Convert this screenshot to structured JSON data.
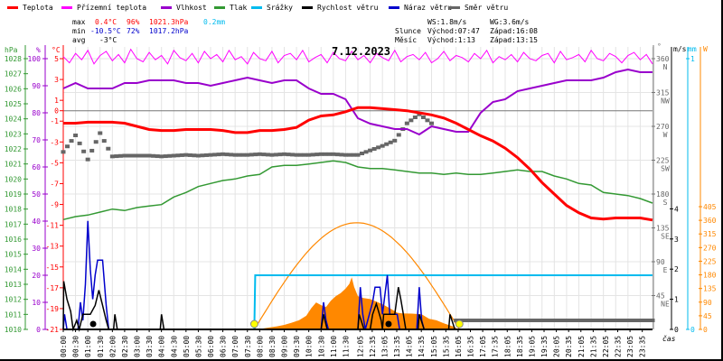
{
  "legend": [
    {
      "label": "Teplota",
      "color": "#ff0000"
    },
    {
      "label": "Přízemní teplota",
      "color": "#ff00ff"
    },
    {
      "label": "Vlhkost",
      "color": "#9900cc"
    },
    {
      "label": "Tlak",
      "color": "#339933"
    },
    {
      "label": "Srážky",
      "color": "#00bbee"
    },
    {
      "label": "Rychlost větru",
      "color": "#000000"
    },
    {
      "label": "Náraz větru",
      "color": "#0000cc"
    },
    {
      "label": "Směr větru",
      "color": "#666666"
    }
  ],
  "stats": {
    "max_label": "max",
    "max_temp": "0.4°C",
    "max_hum": "96%",
    "max_press": "1021.3hPa",
    "precip": "0.2mm",
    "min_label": "min",
    "min_temp": "-10.5°C",
    "min_hum": "72%",
    "min_press": "1017.2hPa",
    "avg_label": "avg",
    "avg_temp": "-3°C"
  },
  "wind_stats": {
    "ws": "WS:1.8m/s",
    "wg": "WG:3.6m/s"
  },
  "sun": {
    "label": "Slunce",
    "rise": "Východ:07:47",
    "set": "Západ:16:08",
    "rise_h": 7.783,
    "set_h": 16.133
  },
  "moon": {
    "label": "Měsíc",
    "rise": "Východ:1:13",
    "set": "Západ:13:15",
    "rise_h": 1.217,
    "set_h": 13.25
  },
  "colors": {
    "temp": "#ff0000",
    "feel": "#ff00ff",
    "hum": "#9900cc",
    "press": "#339933",
    "precip": "#00bbee",
    "wind": "#000000",
    "gust": "#0000cc",
    "dir": "#666666",
    "solar": "#ff8800",
    "sun_marker": "#ffff00"
  },
  "chart_data": {
    "type": "line",
    "title": "7.12.2023",
    "xlabel": "čas",
    "x_tick_labels": [
      "00:00",
      "00:30",
      "01:00",
      "01:30",
      "02:00",
      "02:30",
      "03:00",
      "03:30",
      "04:00",
      "04:30",
      "05:00",
      "05:30",
      "06:00",
      "06:30",
      "07:00",
      "07:30",
      "08:00",
      "08:30",
      "09:00",
      "09:30",
      "10:00",
      "10:30",
      "11:00",
      "11:30",
      "12:05",
      "12:35",
      "13:05",
      "13:35",
      "14:05",
      "14:35",
      "15:05",
      "15:35",
      "16:05",
      "16:35",
      "17:05",
      "17:35",
      "18:05",
      "18:35",
      "19:05",
      "19:35",
      "20:05",
      "20:35",
      "21:05",
      "21:35",
      "22:05",
      "22:35",
      "23:05",
      "23:35"
    ],
    "x_range_hours": [
      0,
      24
    ],
    "axes": {
      "hpa": {
        "unit": "hPa",
        "range": [
          1010,
          1028
        ],
        "ticks": [
          "1010",
          "1011",
          "1012",
          "1013",
          "1014",
          "1015",
          "1016",
          "1017",
          "1018",
          "1019",
          "1020",
          "1021",
          "1022",
          "1023",
          "1024",
          "1025",
          "1026",
          "1027",
          "1028"
        ]
      },
      "pct": {
        "unit": "%",
        "range": [
          0,
          100
        ],
        "ticks": [
          "0",
          "10",
          "20",
          "30",
          "40",
          "50",
          "60",
          "70",
          "80",
          "90",
          "100"
        ]
      },
      "temp": {
        "unit": "°C",
        "range": [
          -21,
          5
        ],
        "ticks": [
          "5",
          "3",
          "1",
          "0",
          "-1",
          "-3",
          "-5",
          "-7",
          "-9",
          "-11",
          "-13",
          "-15",
          "-17",
          "-19",
          "-21"
        ]
      },
      "dir": {
        "unit": "°",
        "range": [
          0,
          360
        ],
        "ticks": [
          {
            "v": "360",
            "d": "N"
          },
          {
            "v": "315",
            "d": "NW"
          },
          {
            "v": "270",
            "d": "W"
          },
          {
            "v": "225",
            "d": "SW"
          },
          {
            "v": "180",
            "d": "S"
          },
          {
            "v": "135",
            "d": "SE"
          },
          {
            "v": "90",
            "d": "E"
          },
          {
            "v": "45",
            "d": "NE"
          }
        ]
      },
      "ms": {
        "unit": "m/s",
        "range": [
          0,
          4
        ],
        "ticks": [
          "0",
          "1",
          "2",
          "3",
          "4"
        ]
      },
      "mm": {
        "unit": "mm",
        "range": [
          0,
          1
        ],
        "ticks": [
          "0",
          "1"
        ]
      },
      "w": {
        "unit": "W",
        "range": [
          0,
          405
        ],
        "ticks": [
          "0",
          "45",
          "90",
          "135",
          "180",
          "225",
          "270",
          "315",
          "360",
          "405"
        ]
      }
    },
    "series": [
      {
        "name": "Teplota",
        "unit": "°C",
        "step_hours": 0.5,
        "values": [
          -1.2,
          -1.2,
          -1.1,
          -1.1,
          -1.1,
          -1.2,
          -1.5,
          -1.8,
          -1.9,
          -1.9,
          -1.8,
          -1.8,
          -1.8,
          -1.9,
          -2.1,
          -2.1,
          -1.9,
          -1.9,
          -1.8,
          -1.6,
          -0.9,
          -0.5,
          -0.4,
          -0.1,
          0.3,
          0.3,
          0.2,
          0.1,
          0.0,
          -0.2,
          -0.4,
          -0.7,
          -1.2,
          -1.8,
          -2.4,
          -2.9,
          -3.6,
          -4.5,
          -5.6,
          -6.9,
          -8.0,
          -9.1,
          -9.8,
          -10.3,
          -10.4,
          -10.3,
          -10.3,
          -10.3,
          -10.5
        ]
      },
      {
        "name": "Přízemní teplota",
        "unit": "°C",
        "values": [
          5.2,
          4.6,
          5.5,
          4.9,
          5.8,
          4.5,
          5.3,
          5.7,
          4.8,
          5.4,
          4.6,
          5.9,
          5.0,
          4.7,
          5.6,
          4.9,
          5.3,
          4.5,
          5.8,
          5.1,
          4.8,
          5.5,
          4.6,
          5.7,
          5.0,
          5.4,
          4.7,
          5.8,
          4.9,
          5.2,
          4.5,
          5.6,
          5.0,
          4.8,
          5.7,
          4.6,
          5.3,
          5.5,
          4.9,
          5.8,
          4.7,
          5.1,
          5.4,
          4.6,
          5.6,
          5.0,
          4.8,
          5.7,
          4.9,
          5.3,
          4.6,
          5.5,
          5.1,
          4.8,
          5.8,
          4.7,
          5.2,
          5.4,
          4.9,
          5.6,
          4.6,
          5.0,
          5.7,
          4.8,
          5.3,
          5.1,
          4.7,
          5.5,
          5.0,
          5.8,
          4.6,
          5.2,
          4.9,
          5.4,
          4.7,
          5.6,
          5.0,
          4.8,
          5.3,
          5.5,
          4.6,
          5.7,
          4.9,
          5.1,
          5.4,
          4.7,
          5.8,
          5.0,
          4.8,
          5.5,
          5.2,
          4.6,
          5.3,
          5.6,
          4.9,
          5.4,
          4.5
        ]
      },
      {
        "name": "Vlhkost",
        "unit": "%",
        "step_hours": 0.5,
        "values": [
          89,
          91,
          89,
          89,
          89,
          91,
          91,
          92,
          92,
          92,
          91,
          91,
          90,
          91,
          92,
          93,
          92,
          91,
          92,
          92,
          89,
          87,
          87,
          85,
          78,
          76,
          75,
          74,
          74,
          72,
          75,
          74,
          73,
          73,
          80,
          84,
          85,
          88,
          89,
          90,
          91,
          92,
          92,
          92,
          93,
          95,
          96,
          95,
          95
        ]
      },
      {
        "name": "Tlak",
        "unit": "hPa",
        "step_hours": 0.5,
        "values": [
          1017.3,
          1017.5,
          1017.6,
          1017.8,
          1018.0,
          1017.9,
          1018.1,
          1018.2,
          1018.3,
          1018.8,
          1019.1,
          1019.5,
          1019.7,
          1019.9,
          1020.0,
          1020.2,
          1020.3,
          1020.8,
          1020.9,
          1020.9,
          1021.0,
          1021.1,
          1021.2,
          1021.1,
          1020.8,
          1020.7,
          1020.7,
          1020.6,
          1020.5,
          1020.4,
          1020.4,
          1020.3,
          1020.4,
          1020.3,
          1020.3,
          1020.4,
          1020.5,
          1020.6,
          1020.5,
          1020.5,
          1020.2,
          1020.0,
          1019.7,
          1019.6,
          1019.1,
          1019.0,
          1018.9,
          1018.7,
          1018.4
        ]
      },
      {
        "name": "Srážky",
        "unit": "mm",
        "points": [
          [
            0,
            0
          ],
          [
            7.78,
            0
          ],
          [
            7.82,
            0.2
          ],
          [
            24,
            0.2
          ]
        ]
      },
      {
        "name": "Rychlost větru",
        "unit": "m/s",
        "points": [
          [
            0,
            0
          ],
          [
            0.02,
            1.6
          ],
          [
            0.15,
            1.0
          ],
          [
            0.3,
            0.6
          ],
          [
            0.4,
            0
          ],
          [
            0.55,
            0.3
          ],
          [
            0.65,
            0
          ],
          [
            0.8,
            0.5
          ],
          [
            1.1,
            0.5
          ],
          [
            1.3,
            0.8
          ],
          [
            1.45,
            1.3
          ],
          [
            1.6,
            0.8
          ],
          [
            1.75,
            0.3
          ],
          [
            1.85,
            0
          ],
          [
            2.05,
            0
          ],
          [
            2.1,
            0.5
          ],
          [
            2.2,
            0
          ],
          [
            3.95,
            0
          ],
          [
            4.0,
            0.5
          ],
          [
            4.1,
            0
          ],
          [
            10.5,
            0
          ],
          [
            10.6,
            0.5
          ],
          [
            10.75,
            0
          ],
          [
            12.0,
            0
          ],
          [
            12.05,
            0.5
          ],
          [
            12.25,
            0
          ],
          [
            12.5,
            0
          ],
          [
            12.6,
            0.5
          ],
          [
            12.75,
            0.85
          ],
          [
            12.95,
            0.3
          ],
          [
            13.0,
            0
          ],
          [
            13.05,
            0.5
          ],
          [
            13.5,
            0.5
          ],
          [
            13.65,
            1.4
          ],
          [
            13.75,
            1.0
          ],
          [
            13.85,
            0.5
          ],
          [
            13.95,
            0
          ],
          [
            14.45,
            0
          ],
          [
            14.5,
            0.5
          ],
          [
            14.7,
            0
          ],
          [
            15.7,
            0
          ],
          [
            15.75,
            0.5
          ],
          [
            15.95,
            0
          ],
          [
            24,
            0
          ]
        ]
      },
      {
        "name": "Náraz větru",
        "unit": "m/s",
        "points": [
          [
            0,
            0
          ],
          [
            0.05,
            0.5
          ],
          [
            0.15,
            0
          ],
          [
            0.6,
            0
          ],
          [
            0.7,
            0.9
          ],
          [
            0.8,
            0.3
          ],
          [
            0.9,
            1.5
          ],
          [
            1.0,
            3.6
          ],
          [
            1.1,
            2.0
          ],
          [
            1.2,
            1.0
          ],
          [
            1.3,
            1.8
          ],
          [
            1.4,
            2.3
          ],
          [
            1.6,
            2.3
          ],
          [
            1.75,
            0.8
          ],
          [
            1.85,
            0
          ],
          [
            10.5,
            0
          ],
          [
            10.6,
            0.9
          ],
          [
            10.7,
            0.3
          ],
          [
            10.8,
            0
          ],
          [
            12.0,
            0
          ],
          [
            12.1,
            1.4
          ],
          [
            12.2,
            0.5
          ],
          [
            12.3,
            0
          ],
          [
            12.6,
            0.9
          ],
          [
            12.7,
            1.4
          ],
          [
            12.9,
            1.4
          ],
          [
            13.0,
            0.5
          ],
          [
            13.2,
            1.8
          ],
          [
            13.3,
            0.5
          ],
          [
            13.6,
            0.5
          ],
          [
            13.7,
            0
          ],
          [
            14.4,
            0
          ],
          [
            14.5,
            1.4
          ],
          [
            14.6,
            0.3
          ],
          [
            14.7,
            0
          ],
          [
            24,
            0
          ]
        ]
      },
      {
        "name": "Směr větru",
        "unit": "°",
        "step_hours": 0.5,
        "values": [
          236,
          258,
          226,
          261,
          230,
          231,
          231,
          231,
          230,
          231,
          232,
          231,
          232,
          233,
          232,
          232,
          233,
          232,
          233,
          232,
          232,
          233,
          233,
          232,
          232,
          238,
          244,
          251,
          274,
          286,
          274,
          null,
          12,
          12,
          12,
          12,
          12,
          12,
          12,
          12,
          12,
          12,
          12,
          12,
          12,
          12,
          12,
          12,
          12
        ]
      },
      {
        "name": "Sluneční záření",
        "unit": "W",
        "points": [
          [
            7.9,
            0
          ],
          [
            8.3,
            5
          ],
          [
            8.7,
            10
          ],
          [
            9.0,
            15
          ],
          [
            9.3,
            22
          ],
          [
            9.6,
            30
          ],
          [
            9.9,
            45
          ],
          [
            10.1,
            70
          ],
          [
            10.3,
            89
          ],
          [
            10.5,
            80
          ],
          [
            10.7,
            74
          ],
          [
            10.9,
            95
          ],
          [
            11.1,
            110
          ],
          [
            11.3,
            120
          ],
          [
            11.5,
            135
          ],
          [
            11.65,
            150
          ],
          [
            11.75,
            172
          ],
          [
            11.85,
            140
          ],
          [
            12.0,
            110
          ],
          [
            12.2,
            104
          ],
          [
            12.5,
            100
          ],
          [
            12.8,
            90
          ],
          [
            13.0,
            83
          ],
          [
            13.3,
            70
          ],
          [
            13.6,
            55
          ],
          [
            13.8,
            53
          ],
          [
            14.2,
            52
          ],
          [
            14.6,
            50
          ],
          [
            14.9,
            35
          ],
          [
            15.2,
            30
          ],
          [
            15.5,
            20
          ],
          [
            15.9,
            9
          ],
          [
            16.1,
            0
          ]
        ]
      },
      {
        "name": "Teoretické záření",
        "unit": "W",
        "peak": 352
      }
    ]
  }
}
